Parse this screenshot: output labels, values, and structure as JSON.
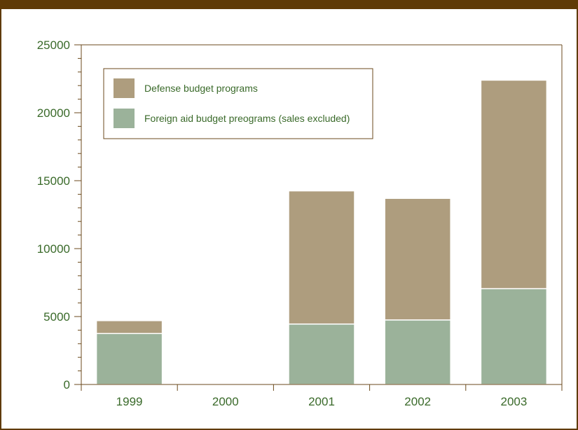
{
  "chart_data": {
    "type": "bar",
    "stacked": true,
    "categories": [
      "1999",
      "2000",
      "2001",
      "2002",
      "2003"
    ],
    "series": [
      {
        "name": "Foreign aid budget preograms (sales excluded)",
        "color": "#9bb29a",
        "values": [
          3750,
          0,
          4450,
          4750,
          7050
        ]
      },
      {
        "name": "Defense budget programs",
        "color": "#ae9d7e",
        "values": [
          950,
          0,
          9800,
          8950,
          15350
        ]
      }
    ],
    "ylim": [
      0,
      25000
    ],
    "yticks": [
      0,
      5000,
      10000,
      15000,
      20000,
      25000
    ],
    "legend_position": "top-left",
    "grid": false
  },
  "colors": {
    "frame": "#5f3a06",
    "axis": "#6b4a1c",
    "text": "#3a6a2a"
  }
}
